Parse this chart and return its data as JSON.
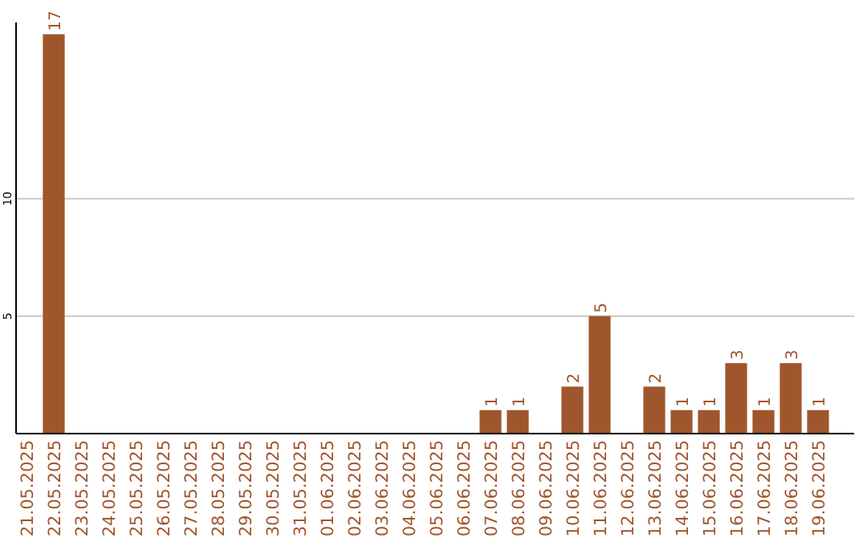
{
  "chart_data": {
    "type": "bar",
    "categories": [
      "21.05.2025",
      "22.05.2025",
      "23.05.2025",
      "24.05.2025",
      "25.05.2025",
      "26.05.2025",
      "27.05.2025",
      "28.05.2025",
      "29.05.2025",
      "30.05.2025",
      "31.05.2025",
      "01.06.2025",
      "02.06.2025",
      "03.06.2025",
      "04.06.2025",
      "05.06.2025",
      "06.06.2025",
      "07.06.2025",
      "08.06.2025",
      "09.06.2025",
      "10.06.2025",
      "11.06.2025",
      "12.06.2025",
      "13.06.2025",
      "14.06.2025",
      "15.06.2025",
      "16.06.2025",
      "17.06.2025",
      "18.06.2025",
      "19.06.2025"
    ],
    "values": [
      0,
      17,
      0,
      0,
      0,
      0,
      0,
      0,
      0,
      0,
      0,
      0,
      0,
      0,
      0,
      0,
      0,
      1,
      1,
      0,
      2,
      5,
      0,
      2,
      1,
      1,
      3,
      1,
      3,
      1
    ],
    "value_labels": [
      null,
      "17",
      null,
      null,
      null,
      null,
      null,
      null,
      null,
      null,
      null,
      null,
      null,
      null,
      null,
      null,
      null,
      "1",
      "1",
      null,
      "2",
      "5",
      null,
      "2",
      "1",
      "1",
      "3",
      "1",
      "3",
      "1"
    ],
    "color": "#a0562c",
    "ylim": [
      0,
      17.5
    ],
    "yticks": [
      5,
      10
    ],
    "grid": "y"
  }
}
